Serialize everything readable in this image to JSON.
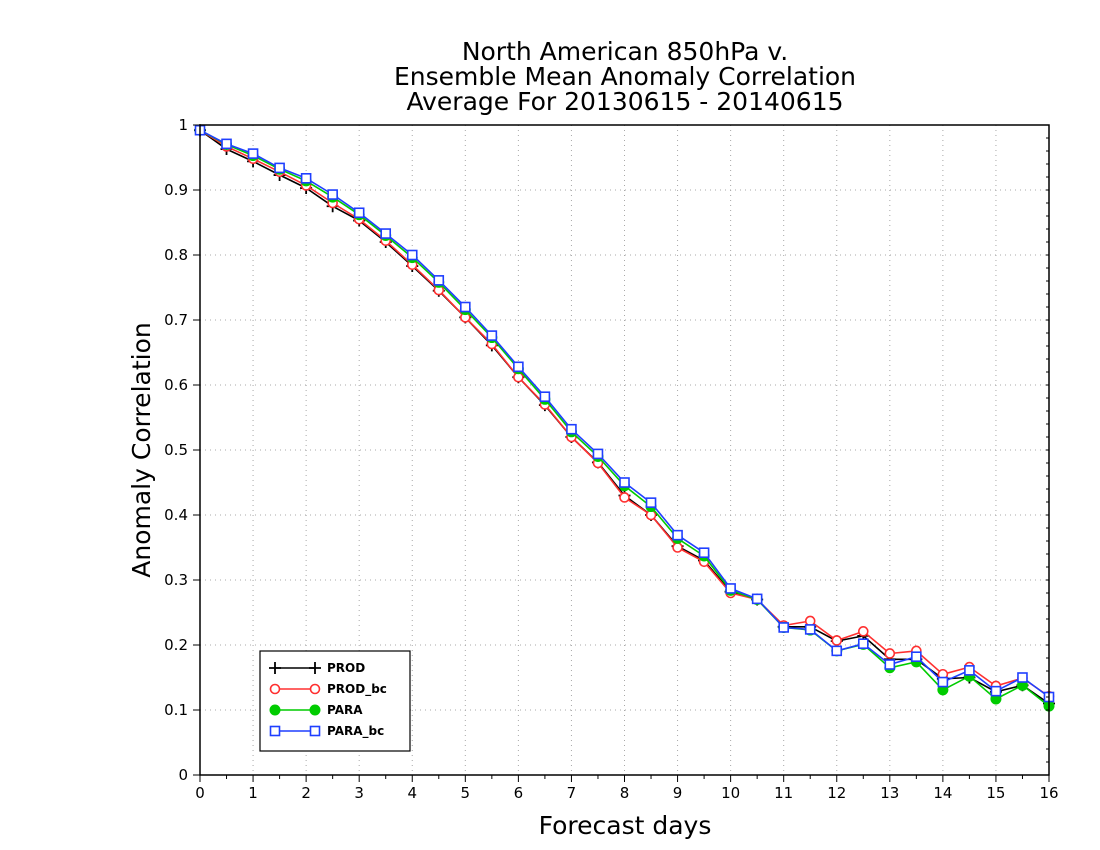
{
  "chart_data": {
    "type": "line",
    "title_lines": [
      "North American 850hPa v.",
      "Ensemble Mean Anomaly Correlation",
      "Average For 20130615 - 20140615"
    ],
    "xlabel": "Forecast days",
    "ylabel": "Anomaly Correlation",
    "xlim": [
      0,
      16
    ],
    "ylim": [
      0,
      1
    ],
    "x_ticks": [
      "0",
      "1",
      "2",
      "3",
      "4",
      "5",
      "6",
      "7",
      "8",
      "9",
      "10",
      "11",
      "12",
      "13",
      "14",
      "15",
      "16"
    ],
    "y_ticks": [
      "0",
      "0.1",
      "0.2",
      "0.3",
      "0.4",
      "0.5",
      "0.6",
      "0.7",
      "0.8",
      "0.9",
      "1"
    ],
    "grid": true,
    "legend_position": "bottom-left",
    "x": [
      0,
      0.5,
      1,
      1.5,
      2,
      2.5,
      3,
      3.5,
      4,
      4.5,
      5,
      5.5,
      6,
      6.5,
      7,
      7.5,
      8,
      8.5,
      9,
      9.5,
      10,
      10.5,
      11,
      11.5,
      12,
      12.5,
      13,
      13.5,
      14,
      14.5,
      15,
      15.5,
      16
    ],
    "series": [
      {
        "name": "PROD",
        "color": "#000000",
        "marker": "plus",
        "values": [
          0.992,
          0.963,
          0.944,
          0.923,
          0.903,
          0.875,
          0.853,
          0.82,
          0.783,
          0.745,
          0.704,
          0.661,
          0.612,
          0.569,
          0.52,
          0.481,
          0.43,
          0.4,
          0.352,
          0.33,
          0.282,
          0.27,
          0.228,
          0.228,
          0.206,
          0.214,
          0.178,
          0.178,
          0.148,
          0.15,
          0.128,
          0.138,
          0.11
        ]
      },
      {
        "name": "PROD_bc",
        "color": "#ff3030",
        "marker": "circle",
        "values": [
          0.992,
          0.967,
          0.948,
          0.928,
          0.907,
          0.88,
          0.855,
          0.822,
          0.785,
          0.746,
          0.704,
          0.663,
          0.612,
          0.57,
          0.52,
          0.48,
          0.427,
          0.4,
          0.35,
          0.328,
          0.28,
          0.27,
          0.23,
          0.237,
          0.207,
          0.221,
          0.187,
          0.191,
          0.155,
          0.166,
          0.137,
          0.149,
          0.121
        ]
      },
      {
        "name": "PARA",
        "color": "#00cc00",
        "marker": "filled-circle",
        "values": [
          0.992,
          0.97,
          0.953,
          0.932,
          0.914,
          0.889,
          0.862,
          0.83,
          0.796,
          0.758,
          0.716,
          0.673,
          0.625,
          0.578,
          0.528,
          0.49,
          0.445,
          0.413,
          0.364,
          0.337,
          0.284,
          0.27,
          0.227,
          0.223,
          0.191,
          0.201,
          0.165,
          0.174,
          0.131,
          0.152,
          0.117,
          0.138,
          0.106
        ]
      },
      {
        "name": "PARA_bc",
        "color": "#1f3fff",
        "marker": "square",
        "values": [
          0.992,
          0.971,
          0.956,
          0.934,
          0.918,
          0.893,
          0.865,
          0.833,
          0.8,
          0.761,
          0.72,
          0.676,
          0.628,
          0.582,
          0.532,
          0.494,
          0.45,
          0.419,
          0.369,
          0.342,
          0.287,
          0.271,
          0.227,
          0.224,
          0.191,
          0.202,
          0.17,
          0.182,
          0.143,
          0.161,
          0.129,
          0.15,
          0.12
        ]
      }
    ]
  }
}
